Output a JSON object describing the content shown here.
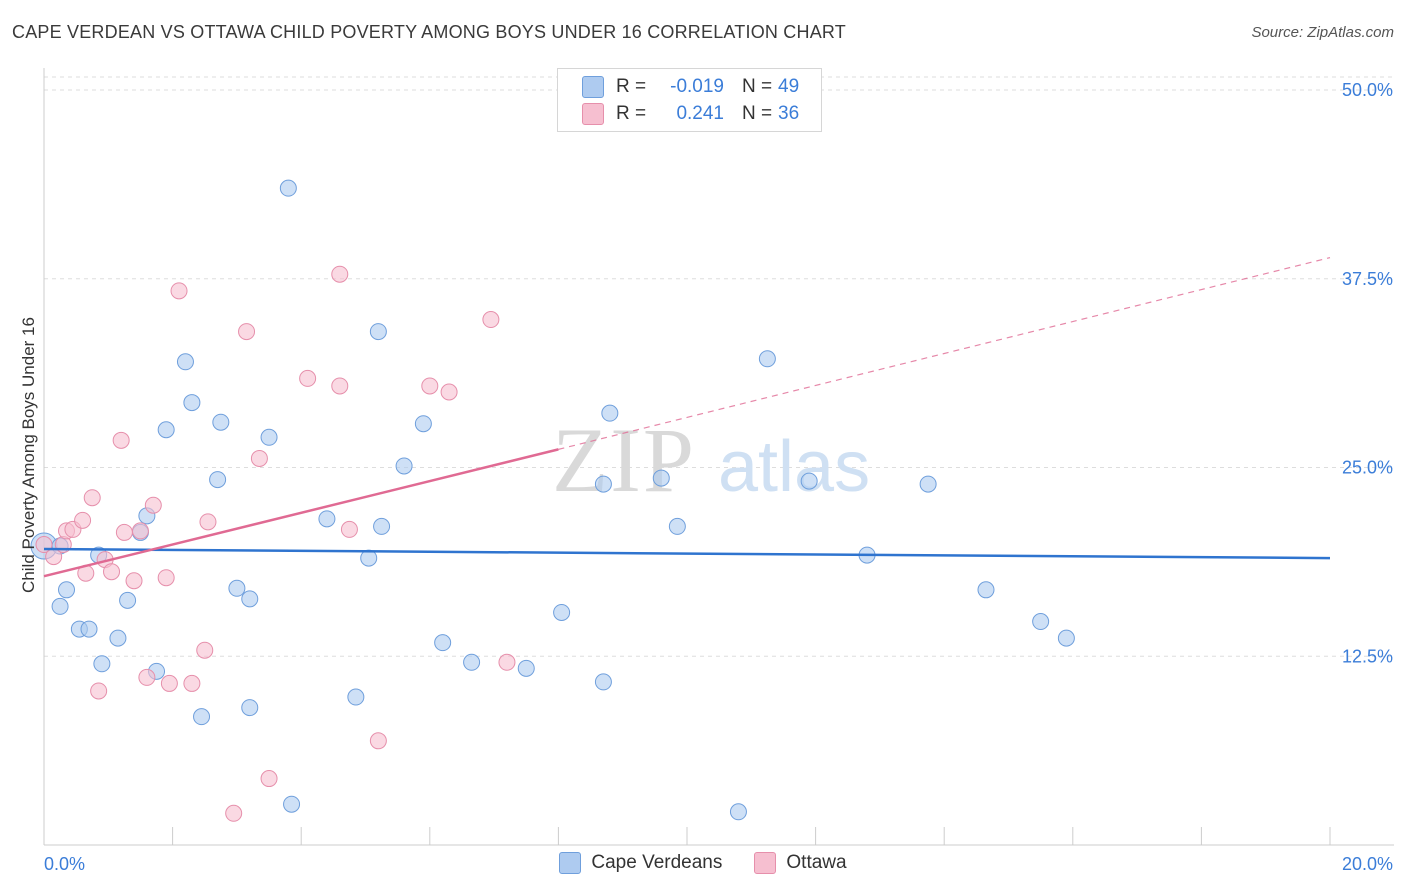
{
  "title": "CAPE VERDEAN VS OTTAWA CHILD POVERTY AMONG BOYS UNDER 16 CORRELATION CHART",
  "source": "Source: ZipAtlas.com",
  "watermark": {
    "zip": "ZIP",
    "atlas": "atlas"
  },
  "colors": {
    "blue_fill": "#aecbf0",
    "blue_stroke": "#6f9fdc",
    "blue_line": "#2f74cf",
    "pink_fill": "#f6bfd0",
    "pink_stroke": "#e68fab",
    "pink_line": "#e06a93",
    "tick_label": "#3b7dd8"
  },
  "legend": {
    "rows": [
      {
        "series": "Cape Verdeans",
        "r_label": "R =",
        "r_value": "-0.019",
        "n_label": "N =",
        "n_value": "49"
      },
      {
        "series": "Ottawa",
        "r_label": "R =",
        "r_value": "0.241",
        "n_label": "N =",
        "n_value": "36"
      }
    ]
  },
  "chart_data": {
    "type": "scatter",
    "title": "CAPE VERDEAN VS OTTAWA CHILD POVERTY AMONG BOYS UNDER 16 CORRELATION CHART",
    "xlabel": "",
    "ylabel": "Child Poverty Among Boys Under 16",
    "xlim": [
      0,
      20
    ],
    "ylim": [
      0,
      50
    ],
    "x_tick_labels": [
      {
        "value": 0,
        "label": "0.0%"
      },
      {
        "value": 20,
        "label": "20.0%"
      }
    ],
    "y_tick_labels": [
      {
        "value": 12.5,
        "label": "12.5%"
      },
      {
        "value": 25,
        "label": "25.0%"
      },
      {
        "value": 37.5,
        "label": "37.5%"
      },
      {
        "value": 50,
        "label": "50.0%"
      }
    ],
    "grid": true,
    "legend_position": "bottom-center",
    "series": [
      {
        "name": "Cape Verdeans",
        "color": "blue",
        "r": -0.019,
        "n": 49,
        "trend": {
          "x0": 0,
          "y0": 19.6,
          "x1": 20,
          "y1": 19.0
        },
        "points": [
          [
            0.0,
            19.8
          ],
          [
            0.25,
            19.8
          ],
          [
            0.25,
            15.8
          ],
          [
            0.35,
            16.9
          ],
          [
            0.55,
            14.3
          ],
          [
            0.7,
            14.3
          ],
          [
            0.85,
            19.2
          ],
          [
            0.9,
            12.0
          ],
          [
            1.15,
            13.7
          ],
          [
            1.3,
            16.2
          ],
          [
            1.6,
            21.8
          ],
          [
            1.5,
            20.7
          ],
          [
            1.75,
            11.5
          ],
          [
            1.9,
            27.5
          ],
          [
            2.2,
            32.0
          ],
          [
            2.3,
            29.3
          ],
          [
            2.45,
            8.5
          ],
          [
            2.7,
            24.2
          ],
          [
            2.75,
            28.0
          ],
          [
            3.0,
            17.0
          ],
          [
            3.2,
            16.3
          ],
          [
            3.2,
            9.1
          ],
          [
            3.5,
            27.0
          ],
          [
            3.8,
            43.5
          ],
          [
            3.85,
            2.7
          ],
          [
            4.4,
            21.6
          ],
          [
            4.85,
            9.8
          ],
          [
            5.05,
            19.0
          ],
          [
            5.25,
            21.1
          ],
          [
            5.2,
            34.0
          ],
          [
            5.6,
            25.1
          ],
          [
            5.9,
            27.9
          ],
          [
            6.2,
            13.4
          ],
          [
            6.65,
            12.1
          ],
          [
            7.5,
            11.7
          ],
          [
            8.05,
            15.4
          ],
          [
            8.7,
            23.9
          ],
          [
            8.7,
            10.8
          ],
          [
            8.8,
            28.6
          ],
          [
            9.6,
            24.3
          ],
          [
            9.85,
            21.1
          ],
          [
            10.8,
            2.2
          ],
          [
            11.25,
            32.2
          ],
          [
            11.9,
            24.1
          ],
          [
            12.8,
            19.2
          ],
          [
            14.65,
            16.9
          ],
          [
            15.5,
            14.8
          ],
          [
            15.9,
            13.7
          ],
          [
            13.75,
            23.9
          ]
        ]
      },
      {
        "name": "Ottawa",
        "color": "pink",
        "r": 0.241,
        "n": 36,
        "trend": {
          "x0": 0,
          "y0": 17.8,
          "x1": 8.0,
          "y1": 26.2
        },
        "trend_dashed": {
          "x0": 8.0,
          "y0": 26.2,
          "x1": 20,
          "y1": 38.9
        },
        "points": [
          [
            0.0,
            19.9
          ],
          [
            0.15,
            19.1
          ],
          [
            0.3,
            19.9
          ],
          [
            0.35,
            20.8
          ],
          [
            0.45,
            20.9
          ],
          [
            0.6,
            21.5
          ],
          [
            0.65,
            18.0
          ],
          [
            0.75,
            23.0
          ],
          [
            0.85,
            10.2
          ],
          [
            0.95,
            18.9
          ],
          [
            1.05,
            18.1
          ],
          [
            1.2,
            26.8
          ],
          [
            1.25,
            20.7
          ],
          [
            1.4,
            17.5
          ],
          [
            1.5,
            20.8
          ],
          [
            1.6,
            11.1
          ],
          [
            1.7,
            22.5
          ],
          [
            1.9,
            17.7
          ],
          [
            1.95,
            10.7
          ],
          [
            2.1,
            36.7
          ],
          [
            2.3,
            10.7
          ],
          [
            2.5,
            12.9
          ],
          [
            2.55,
            21.4
          ],
          [
            2.95,
            2.1
          ],
          [
            3.15,
            34.0
          ],
          [
            3.35,
            25.6
          ],
          [
            3.5,
            4.4
          ],
          [
            4.1,
            30.9
          ],
          [
            4.6,
            37.8
          ],
          [
            4.6,
            30.4
          ],
          [
            4.75,
            20.9
          ],
          [
            5.2,
            6.9
          ],
          [
            6.0,
            30.4
          ],
          [
            6.3,
            30.0
          ],
          [
            6.95,
            34.8
          ],
          [
            7.2,
            12.1
          ]
        ]
      }
    ]
  }
}
